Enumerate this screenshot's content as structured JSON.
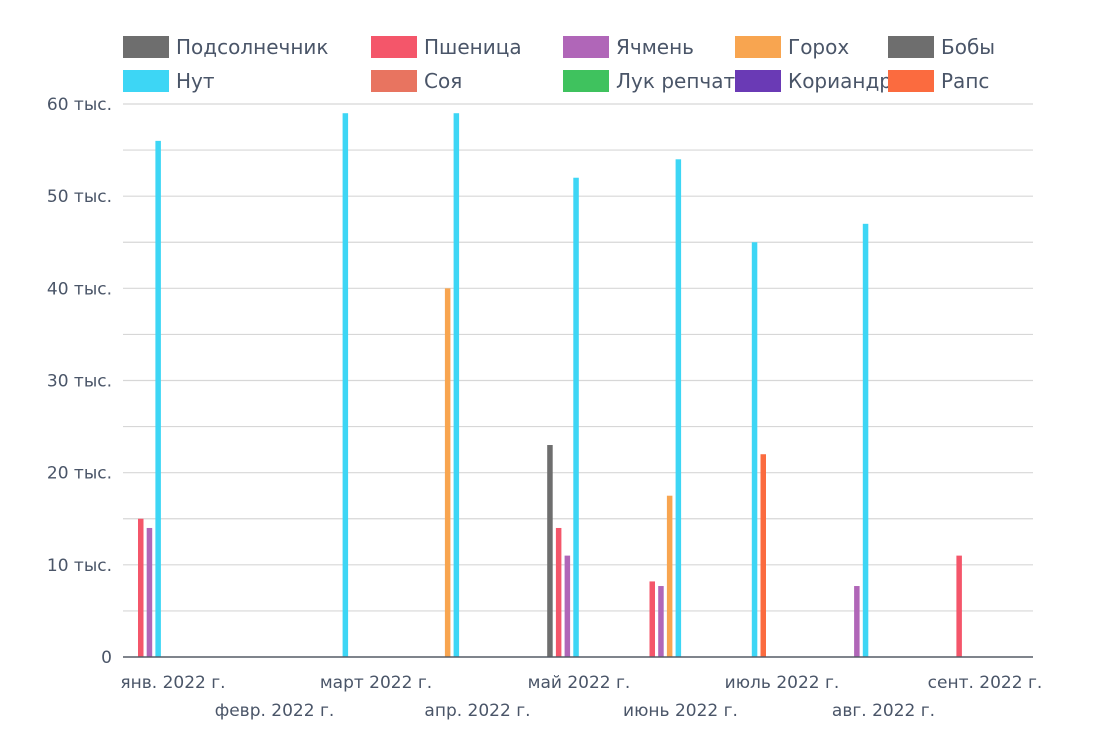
{
  "chart_data": {
    "type": "bar",
    "title": "",
    "xlabel": "",
    "ylabel": "",
    "ylim": [
      0,
      60000
    ],
    "y_ticks": [
      {
        "value": 0,
        "label": "0"
      },
      {
        "value": 10000,
        "label": "10 тыс."
      },
      {
        "value": 20000,
        "label": "20 тыс."
      },
      {
        "value": 30000,
        "label": "30 тыс."
      },
      {
        "value": 40000,
        "label": "40 тыс."
      },
      {
        "value": 50000,
        "label": "50 тыс."
      },
      {
        "value": 60000,
        "label": "60 тыс."
      }
    ],
    "grid": true,
    "legend_position": "top",
    "categories": [
      "янв. 2022 г.",
      "февр. 2022 г.",
      "март 2022 г.",
      "апр. 2022 г.",
      "май 2022 г.",
      "июнь 2022 г.",
      "июль 2022 г.",
      "авг. 2022 г.",
      "сент. 2022 г."
    ],
    "series": [
      {
        "name": "Подсолнечник",
        "color": "#6e6e6e",
        "values": [
          null,
          null,
          null,
          null,
          23000,
          null,
          null,
          null,
          null
        ]
      },
      {
        "name": "Пшеница",
        "color": "#f4566a",
        "values": [
          15000,
          null,
          null,
          null,
          14000,
          8200,
          null,
          null,
          11000
        ]
      },
      {
        "name": "Ячмень",
        "color": "#b066b8",
        "values": [
          14000,
          null,
          null,
          null,
          11000,
          7700,
          null,
          7700,
          null
        ]
      },
      {
        "name": "Горох",
        "color": "#f8a550",
        "values": [
          null,
          null,
          null,
          40000,
          null,
          17500,
          null,
          null,
          null
        ]
      },
      {
        "name": "Бобы",
        "color": "#6e6e6e",
        "values": [
          null,
          null,
          null,
          null,
          null,
          null,
          null,
          null,
          null
        ]
      },
      {
        "name": "Нут",
        "color": "#3dd6f5",
        "values": [
          56000,
          null,
          59000,
          59000,
          52000,
          54000,
          45000,
          47000,
          null
        ]
      },
      {
        "name": "Соя",
        "color": "#e87460",
        "values": [
          null,
          null,
          null,
          null,
          null,
          null,
          null,
          null,
          null
        ]
      },
      {
        "name": "Лук репчатый",
        "color": "#3fc25e",
        "values": [
          null,
          null,
          null,
          null,
          null,
          null,
          null,
          null,
          null
        ]
      },
      {
        "name": "Кориандр",
        "color": "#6a3ab5",
        "values": [
          null,
          null,
          null,
          null,
          null,
          null,
          null,
          null,
          null
        ]
      },
      {
        "name": "Рапс",
        "color": "#fb6b3f",
        "values": [
          null,
          null,
          null,
          null,
          null,
          null,
          22000,
          null,
          null
        ]
      }
    ]
  }
}
